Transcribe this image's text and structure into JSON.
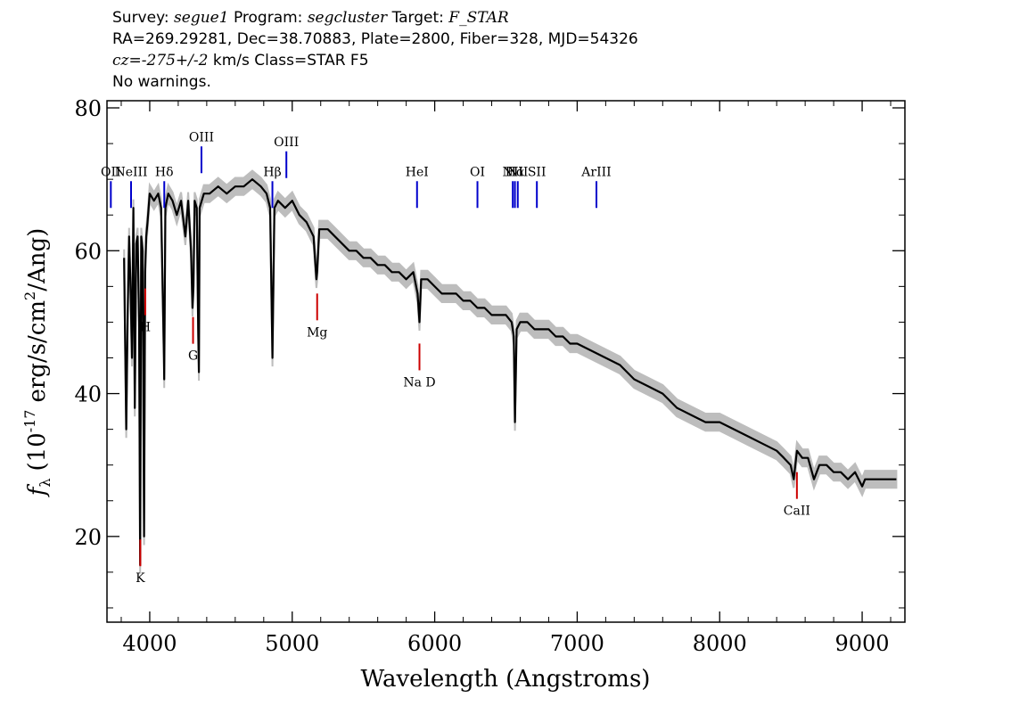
{
  "header": {
    "survey_key": "Survey:",
    "survey": "segue1",
    "program_key": "Program:",
    "program": "segcluster",
    "target_key": "Target:",
    "target": "F_STAR",
    "line2": "RA=269.29281, Dec=38.70883, Plate=2800, Fiber=328, MJD=54326",
    "cz_key": "cz=",
    "cz_value": "-275+/-2",
    "cz_rest": " km/s Class=STAR F5",
    "line4": "No warnings."
  },
  "chart_data": {
    "type": "line",
    "xlabel": "Wavelength (Angstroms)",
    "ylabel_symbol": "f",
    "ylabel_sub": "λ",
    "ylabel_pre": "(10",
    "ylabel_exp": "-17",
    "ylabel_post": "erg/s/cm",
    "ylabel_exp2": "2",
    "ylabel_end": "/Ang)",
    "xlim": [
      3700,
      9300
    ],
    "ylim": [
      8,
      81
    ],
    "xticks": [
      4000,
      5000,
      6000,
      7000,
      8000,
      9000
    ],
    "yticks": [
      20,
      40,
      60,
      80
    ],
    "series": [
      {
        "color": "#000000",
        "x": [
          3820,
          3835,
          3845,
          3855,
          3865,
          3875,
          3885,
          3895,
          3905,
          3915,
          3925,
          3933,
          3940,
          3950,
          3960,
          3968,
          3975,
          3985,
          4000,
          4030,
          4060,
          4080,
          4100,
          4102,
          4110,
          4130,
          4160,
          4190,
          4220,
          4250,
          4270,
          4290,
          4300,
          4307,
          4315,
          4330,
          4340,
          4345,
          4350,
          4380,
          4420,
          4480,
          4540,
          4600,
          4660,
          4720,
          4780,
          4820,
          4845,
          4861,
          4875,
          4900,
          4950,
          5000,
          5050,
          5100,
          5150,
          5170,
          5175,
          5190,
          5250,
          5300,
          5350,
          5400,
          5450,
          5500,
          5550,
          5600,
          5650,
          5700,
          5750,
          5800,
          5850,
          5880,
          5893,
          5905,
          5950,
          6000,
          6050,
          6100,
          6150,
          6200,
          6250,
          6300,
          6350,
          6400,
          6450,
          6500,
          6540,
          6555,
          6563,
          6575,
          6600,
          6650,
          6700,
          6750,
          6800,
          6850,
          6900,
          6950,
          7000,
          7100,
          7200,
          7300,
          7400,
          7500,
          7600,
          7700,
          7800,
          7900,
          8000,
          8100,
          8200,
          8300,
          8400,
          8450,
          8498,
          8520,
          8542,
          8580,
          8620,
          8662,
          8700,
          8750,
          8800,
          8850,
          8900,
          8950,
          9000,
          9020,
          9050,
          9100,
          9150,
          9200,
          9240
        ],
        "y": [
          59,
          35,
          51,
          62,
          55,
          45,
          66,
          38,
          61,
          62,
          50,
          16,
          62,
          60,
          20,
          57,
          62,
          64,
          68,
          67,
          68,
          66,
          45,
          42,
          66,
          68,
          67,
          65,
          67,
          62,
          67,
          60,
          52,
          55,
          67,
          66,
          49,
          43,
          66,
          68,
          68,
          69,
          68,
          69,
          69,
          70,
          69,
          68,
          66,
          45,
          66,
          67,
          66,
          67,
          65,
          64,
          62,
          56,
          57,
          63,
          63,
          62,
          61,
          60,
          60,
          59,
          59,
          58,
          58,
          57,
          57,
          56,
          57,
          54,
          50,
          56,
          56,
          55,
          54,
          54,
          54,
          53,
          53,
          52,
          52,
          51,
          51,
          51,
          50,
          48,
          36,
          49,
          50,
          50,
          49,
          49,
          49,
          48,
          48,
          47,
          47,
          46,
          45,
          44,
          42,
          41,
          40,
          38,
          37,
          36,
          36,
          35,
          34,
          33,
          32,
          31,
          30,
          28,
          32,
          31,
          31,
          28,
          30,
          30,
          29,
          29,
          28,
          29,
          27,
          28,
          28,
          28,
          28,
          28,
          28
        ]
      }
    ],
    "error_band_color": "#bdbdbd",
    "lines": [
      {
        "label": "OII",
        "x": 3727,
        "color": "#0000cc",
        "pos": "above"
      },
      {
        "label": "NeIII",
        "x": 3869,
        "color": "#0000cc",
        "pos": "above"
      },
      {
        "label": "Hδ",
        "x": 4102,
        "color": "#0000cc",
        "pos": "above"
      },
      {
        "label": "OIII",
        "x": 4363,
        "color": "#0000cc",
        "pos": "above"
      },
      {
        "label": "Hβ",
        "x": 4861,
        "color": "#0000cc",
        "pos": "above"
      },
      {
        "label": "OIII",
        "x": 4959,
        "color": "#0000cc",
        "pos": "above"
      },
      {
        "label": "HeI",
        "x": 5876,
        "color": "#0000cc",
        "pos": "above"
      },
      {
        "label": "OI",
        "x": 6300,
        "color": "#0000cc",
        "pos": "above"
      },
      {
        "label": "NII",
        "x": 6548,
        "color": "#0000cc",
        "pos": "above"
      },
      {
        "label": "Hα",
        "x": 6563,
        "color": "#0000cc",
        "pos": "above"
      },
      {
        "label": "NII",
        "x": 6583,
        "color": "#0000cc",
        "pos": "above"
      },
      {
        "label": "SII",
        "x": 6717,
        "color": "#0000cc",
        "pos": "above"
      },
      {
        "label": "ArIII",
        "x": 7135,
        "color": "#0000cc",
        "pos": "above"
      },
      {
        "label": "K",
        "x": 3934,
        "color": "#cc0000",
        "pos": "below"
      },
      {
        "label": "H",
        "x": 3969,
        "color": "#cc0000",
        "pos": "below"
      },
      {
        "label": "G",
        "x": 4304,
        "color": "#cc0000",
        "pos": "below"
      },
      {
        "label": "Mg",
        "x": 5175,
        "color": "#cc0000",
        "pos": "below"
      },
      {
        "label": "Na D",
        "x": 5893,
        "color": "#cc0000",
        "pos": "below"
      },
      {
        "label": "CaII",
        "x": 8542,
        "color": "#cc0000",
        "pos": "below"
      }
    ]
  }
}
